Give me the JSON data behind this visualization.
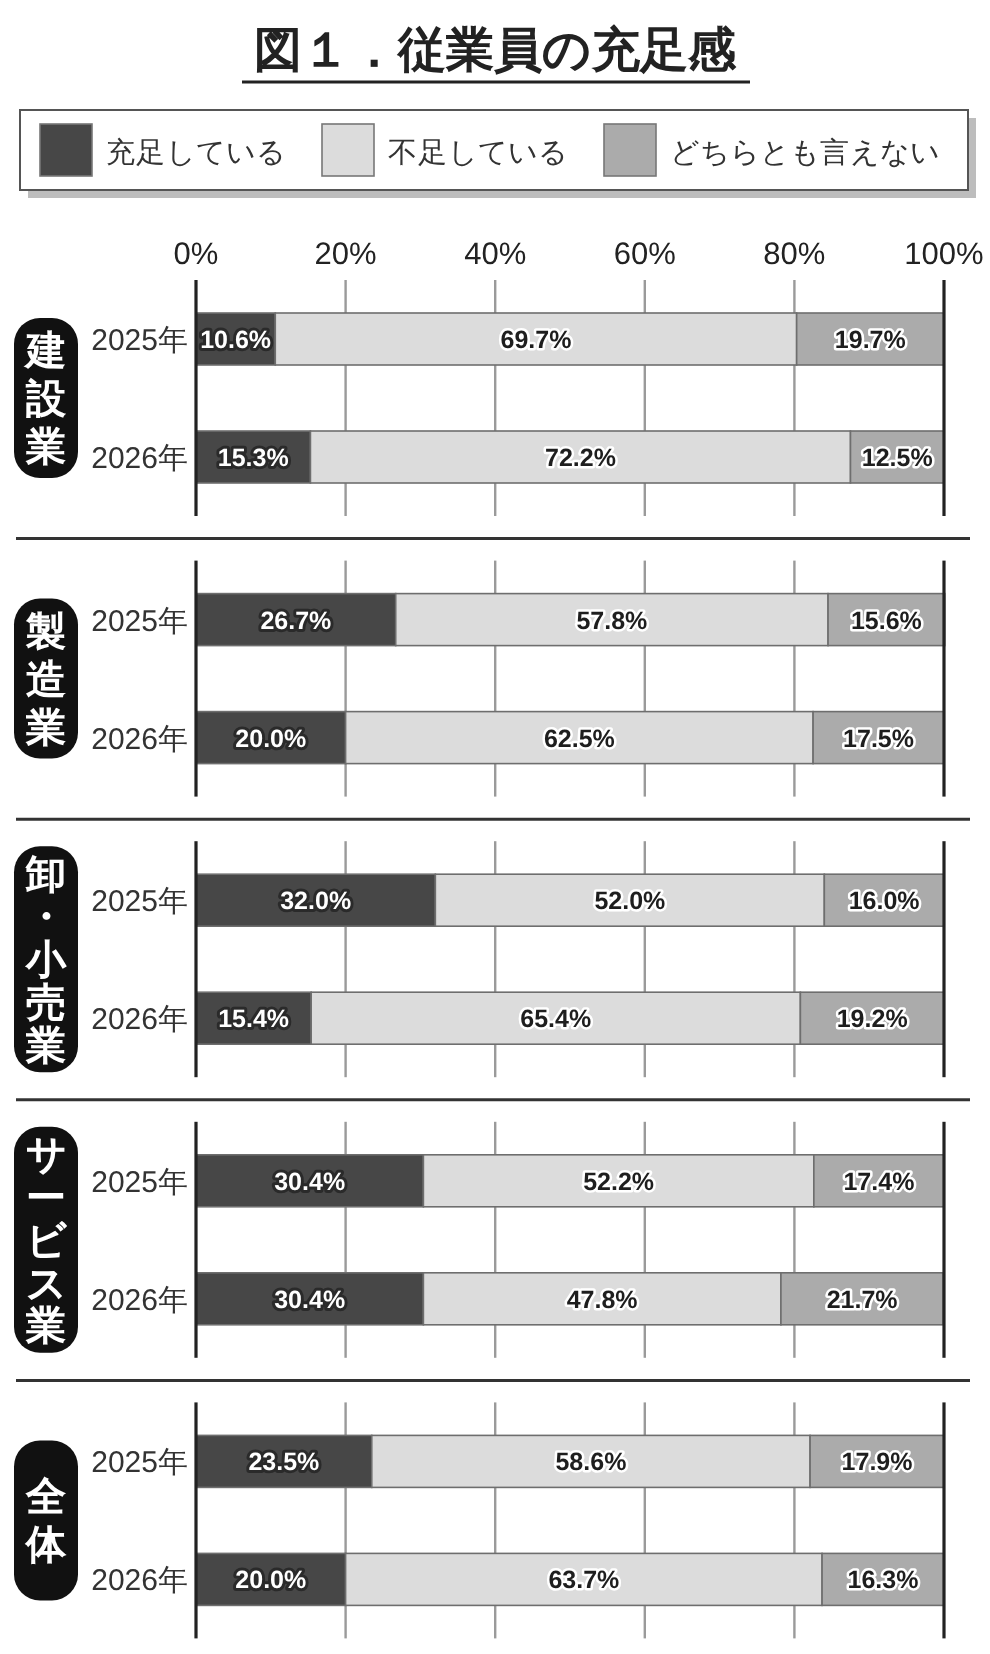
{
  "chart_data": [
    {
      "type": "bar",
      "orientation": "horizontal",
      "stacked": true,
      "title": "図１．従業員の充足感",
      "ylabel": "建設業",
      "categories": [
        "2025年",
        "2026年"
      ],
      "series": [
        {
          "name": "充足している",
          "color": "#474747",
          "values": [
            10.6,
            15.3
          ],
          "value_labels": [
            "10.6%",
            "15.3%"
          ]
        },
        {
          "name": "不足している",
          "color": "#dcdcdc",
          "values": [
            69.7,
            72.2
          ],
          "value_labels": [
            "69.7%",
            "72.2%"
          ]
        },
        {
          "name": "どちらとも言えない",
          "color": "#ababab",
          "values": [
            19.7,
            12.5
          ],
          "value_labels": [
            "19.7%",
            "12.5%"
          ]
        }
      ],
      "xlim": [
        0,
        100
      ],
      "xticks": [
        {
          "value": 0,
          "label": "0%"
        },
        {
          "value": 20,
          "label": "20%"
        },
        {
          "value": 40,
          "label": "40%"
        },
        {
          "value": 60,
          "label": "60%"
        },
        {
          "value": 80,
          "label": "80%"
        },
        {
          "value": 100,
          "label": "100%"
        }
      ],
      "grid": "x",
      "legend": "top"
    },
    {
      "type": "bar",
      "orientation": "horizontal",
      "stacked": true,
      "ylabel": "製造業",
      "categories": [
        "2025年",
        "2026年"
      ],
      "series": [
        {
          "color": "#474747",
          "values": [
            26.7,
            20.0
          ],
          "value_labels": [
            "26.7%",
            "20.0%"
          ]
        },
        {
          "color": "#dcdcdc",
          "values": [
            57.8,
            62.5
          ],
          "value_labels": [
            "57.8%",
            "62.5%"
          ]
        },
        {
          "color": "#ababab",
          "values": [
            15.6,
            17.5
          ],
          "value_labels": [
            "15.6%",
            "17.5%"
          ]
        }
      ],
      "xlim": [
        0,
        100
      ],
      "xticks": [
        0,
        20,
        40,
        60,
        80,
        100
      ],
      "grid": "x",
      "tick_labels": "y"
    },
    {
      "type": "bar",
      "orientation": "horizontal",
      "stacked": true,
      "ylabel": "卸・小売業",
      "categories": [
        "2025年",
        "2026年"
      ],
      "series": [
        {
          "color": "#474747",
          "values": [
            32.0,
            15.4
          ],
          "value_labels": [
            "32.0%",
            "15.4%"
          ]
        },
        {
          "color": "#dcdcdc",
          "values": [
            52.0,
            65.4
          ],
          "value_labels": [
            "52.0%",
            "65.4%"
          ]
        },
        {
          "color": "#ababab",
          "values": [
            16.0,
            19.2
          ],
          "value_labels": [
            "16.0%",
            "19.2%"
          ]
        }
      ],
      "xlim": [
        0,
        100
      ],
      "xticks": [
        0,
        20,
        40,
        60,
        80,
        100
      ],
      "grid": "x",
      "tick_labels": "y"
    },
    {
      "type": "bar",
      "orientation": "horizontal",
      "stacked": true,
      "ylabel": "サービス業",
      "categories": [
        "2025年",
        "2026年"
      ],
      "series": [
        {
          "color": "#474747",
          "values": [
            30.4,
            30.4
          ],
          "value_labels": [
            "30.4%",
            "30.4%"
          ]
        },
        {
          "color": "#dcdcdc",
          "values": [
            52.2,
            47.8
          ],
          "value_labels": [
            "52.2%",
            "47.8%"
          ]
        },
        {
          "color": "#ababab",
          "values": [
            17.4,
            21.7
          ],
          "value_labels": [
            "17.4%",
            "21.7%"
          ]
        }
      ],
      "xlim": [
        0,
        100
      ],
      "xticks": [
        0,
        20,
        40,
        60,
        80,
        100
      ],
      "grid": "x",
      "tick_labels": "y"
    },
    {
      "type": "bar",
      "orientation": "horizontal",
      "stacked": true,
      "ylabel": "全体",
      "categories": [
        "2025年",
        "2026年"
      ],
      "series": [
        {
          "color": "#474747",
          "values": [
            23.5,
            20.0
          ],
          "value_labels": [
            "23.5%",
            "20.0%"
          ]
        },
        {
          "color": "#dcdcdc",
          "values": [
            58.6,
            63.7
          ],
          "value_labels": [
            "58.6%",
            "63.7%"
          ]
        },
        {
          "color": "#ababab",
          "values": [
            17.9,
            16.3
          ],
          "value_labels": [
            "17.9%",
            "16.3%"
          ]
        }
      ],
      "xlim": [
        0,
        100
      ],
      "xticks": [
        0,
        20,
        40,
        60,
        80,
        100
      ],
      "grid": "x",
      "tick_labels": "y"
    }
  ]
}
